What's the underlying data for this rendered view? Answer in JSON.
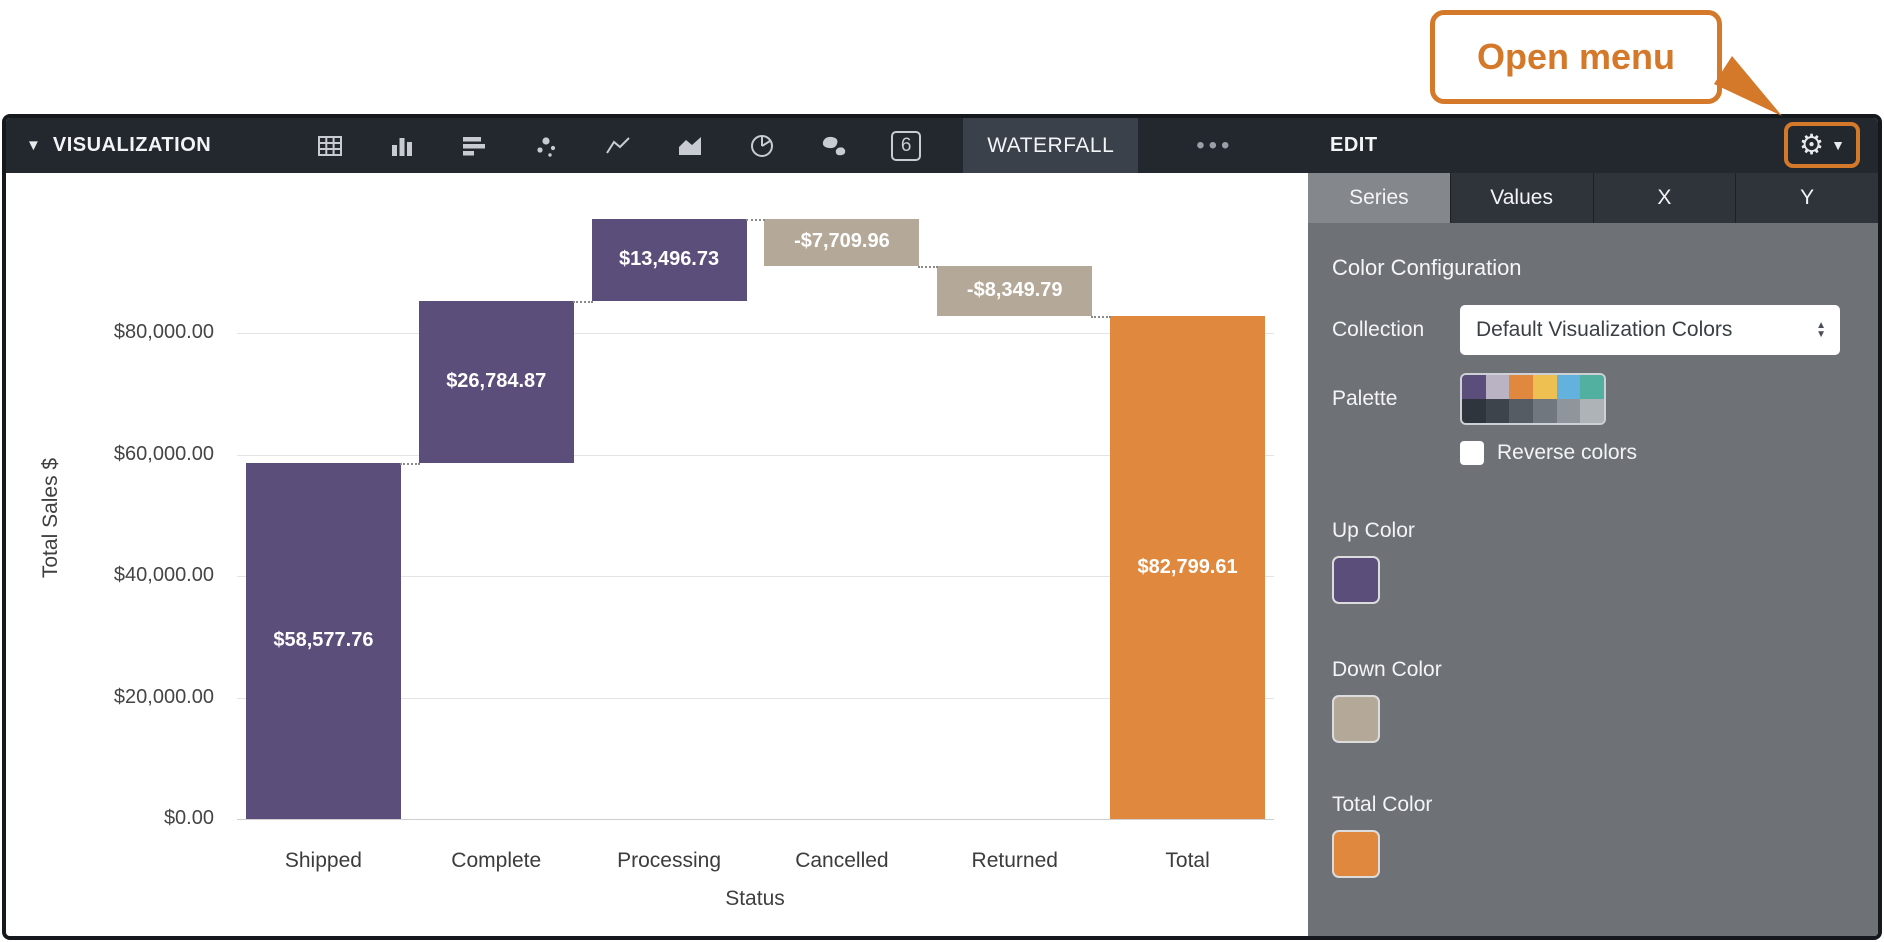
{
  "callout": {
    "label": "Open menu"
  },
  "toolbar": {
    "visualization_label": "VISUALIZATION",
    "chart_type_icons": [
      "table-icon",
      "bar-chart-icon",
      "horizontal-bar-chart-icon",
      "scatter-icon",
      "line-chart-icon",
      "area-chart-icon",
      "pie-chart-icon",
      "map-icon",
      "summary-number-icon"
    ],
    "summary_icon_text": "6",
    "waterfall_label": "WATERFALL",
    "more_label": "•••",
    "edit_label": "EDIT"
  },
  "panel": {
    "tabs": [
      {
        "label": "Series",
        "selected": true
      },
      {
        "label": "Values",
        "selected": false
      },
      {
        "label": "X",
        "selected": false
      },
      {
        "label": "Y",
        "selected": false
      }
    ],
    "section_title": "Color Configuration",
    "collection_label": "Collection",
    "collection_value": "Default Visualization Colors",
    "palette_label": "Palette",
    "palette_colors_top": [
      "#5c4e7a",
      "#b9b3c4",
      "#e0883e",
      "#eec051",
      "#63b1dd",
      "#52b0a0"
    ],
    "palette_colors_bottom": [
      "#2f353d",
      "#3e444c",
      "#565c63",
      "#71777e",
      "#8f959b",
      "#aeb3b8"
    ],
    "reverse_label": "Reverse colors",
    "up_color_label": "Up Color",
    "up_color": "#5c4e7a",
    "down_color_label": "Down Color",
    "down_color": "#b4a898",
    "total_color_label": "Total Color",
    "total_color": "#e0883e"
  },
  "chart_data": {
    "type": "bar",
    "subtype": "waterfall",
    "categories": [
      "Shipped",
      "Complete",
      "Processing",
      "Cancelled",
      "Returned",
      "Total"
    ],
    "values": [
      58577.76,
      26784.87,
      13496.73,
      -7709.96,
      -8349.79,
      82799.61
    ],
    "labels": [
      "$58,577.76",
      "$26,784.87",
      "$13,496.73",
      "-$7,709.96",
      "-$8,349.79",
      "$82,799.61"
    ],
    "roles": [
      "up",
      "up",
      "up",
      "down",
      "down",
      "total"
    ],
    "cumulative_levels": [
      58577.76,
      85362.63,
      98859.36,
      91149.4,
      82799.61,
      82799.61
    ],
    "xlabel": "Status",
    "ylabel": "Total Sales $",
    "ylim": [
      0,
      100000
    ],
    "yticks": [
      0,
      20000,
      40000,
      60000,
      80000
    ],
    "ytick_labels": [
      "$0.00",
      "$20,000.00",
      "$40,000.00",
      "$60,000.00",
      "$80,000.00"
    ],
    "grid": true,
    "colors": {
      "up": "#5c4e7a",
      "down": "#b4a898",
      "total": "#e0883e"
    }
  }
}
